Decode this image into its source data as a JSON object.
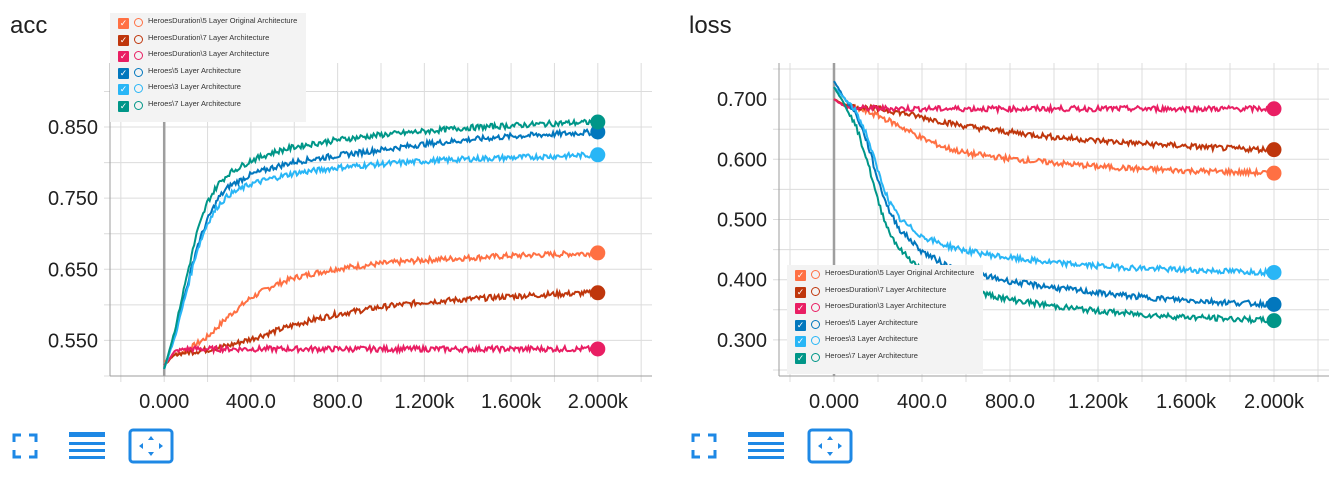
{
  "chart_data": [
    {
      "type": "line",
      "title": "acc",
      "xlabel": "",
      "ylabel": "",
      "xlim": [
        -250,
        2250
      ],
      "ylim": [
        0.5,
        0.94
      ],
      "x_ticks": [
        0,
        400,
        800,
        1200,
        1600,
        2000
      ],
      "x_tick_labels": [
        "0.000",
        "400.0",
        "800.0",
        "1.200k",
        "1.600k",
        "2.000k"
      ],
      "y_ticks": [
        0.55,
        0.65,
        0.75,
        0.85
      ],
      "y_tick_labels": [
        "0.550",
        "0.650",
        "0.750",
        "0.850"
      ],
      "legend_position": "top-left",
      "series": [
        {
          "name": "HeroesDuration\\5 Layer Original Architecture",
          "color": "#ff7043",
          "x": [
            0,
            50,
            100,
            200,
            300,
            400,
            500,
            600,
            700,
            800,
            1000,
            1200,
            1400,
            1600,
            1800,
            2000
          ],
          "y": [
            0.52,
            0.53,
            0.535,
            0.555,
            0.585,
            0.61,
            0.627,
            0.638,
            0.645,
            0.651,
            0.658,
            0.663,
            0.666,
            0.669,
            0.671,
            0.673
          ]
        },
        {
          "name": "HeroesDuration\\7 Layer Architecture",
          "color": "#bf360c",
          "x": [
            0,
            50,
            100,
            200,
            300,
            400,
            500,
            600,
            700,
            800,
            1000,
            1200,
            1400,
            1600,
            1800,
            2000
          ],
          "y": [
            0.515,
            0.53,
            0.533,
            0.537,
            0.543,
            0.552,
            0.562,
            0.572,
            0.58,
            0.587,
            0.597,
            0.604,
            0.608,
            0.612,
            0.615,
            0.617
          ]
        },
        {
          "name": "HeroesDuration\\3 Layer Architecture",
          "color": "#e91e63",
          "x": [
            0,
            50,
            100,
            400,
            800,
            1200,
            1600,
            2000
          ],
          "y": [
            0.515,
            0.535,
            0.538,
            0.538,
            0.538,
            0.538,
            0.538,
            0.538
          ]
        },
        {
          "name": "Heroes\\5 Layer Architecture",
          "color": "#0277bd",
          "x": [
            0,
            50,
            100,
            150,
            200,
            250,
            300,
            400,
            500,
            600,
            800,
            1000,
            1200,
            1400,
            1600,
            1800,
            2000
          ],
          "y": [
            0.51,
            0.56,
            0.62,
            0.68,
            0.72,
            0.75,
            0.767,
            0.783,
            0.793,
            0.801,
            0.81,
            0.818,
            0.826,
            0.832,
            0.837,
            0.84,
            0.843
          ]
        },
        {
          "name": "Heroes\\3 Layer Architecture",
          "color": "#29b6f6",
          "x": [
            0,
            50,
            100,
            150,
            200,
            250,
            300,
            400,
            500,
            600,
            800,
            1000,
            1200,
            1400,
            1600,
            1800,
            2000
          ],
          "y": [
            0.51,
            0.555,
            0.615,
            0.675,
            0.715,
            0.74,
            0.755,
            0.77,
            0.778,
            0.785,
            0.793,
            0.798,
            0.802,
            0.805,
            0.807,
            0.809,
            0.811
          ]
        },
        {
          "name": "Heroes\\7 Layer Architecture",
          "color": "#009688",
          "x": [
            0,
            50,
            100,
            150,
            200,
            250,
            300,
            400,
            500,
            600,
            800,
            1000,
            1200,
            1400,
            1600,
            1800,
            2000
          ],
          "y": [
            0.51,
            0.565,
            0.635,
            0.7,
            0.745,
            0.77,
            0.785,
            0.803,
            0.814,
            0.822,
            0.832,
            0.839,
            0.844,
            0.849,
            0.852,
            0.855,
            0.857
          ]
        }
      ]
    },
    {
      "type": "line",
      "title": "loss",
      "xlabel": "",
      "ylabel": "",
      "xlim": [
        -250,
        2250
      ],
      "ylim": [
        0.24,
        0.76
      ],
      "x_ticks": [
        0,
        400,
        800,
        1200,
        1600,
        2000
      ],
      "x_tick_labels": [
        "0.000",
        "400.0",
        "800.0",
        "1.200k",
        "1.600k",
        "2.000k"
      ],
      "y_ticks": [
        0.3,
        0.4,
        0.5,
        0.6,
        0.7
      ],
      "y_tick_labels": [
        "0.300",
        "0.400",
        "0.500",
        "0.600",
        "0.700"
      ],
      "legend_position": "bottom-left",
      "series": [
        {
          "name": "HeroesDuration\\5 Layer Original Architecture",
          "color": "#ff7043",
          "x": [
            0,
            50,
            100,
            200,
            300,
            400,
            500,
            600,
            800,
            1000,
            1200,
            1400,
            1600,
            1800,
            2000
          ],
          "y": [
            0.7,
            0.69,
            0.685,
            0.673,
            0.655,
            0.635,
            0.62,
            0.61,
            0.601,
            0.594,
            0.588,
            0.584,
            0.581,
            0.579,
            0.577
          ]
        },
        {
          "name": "HeroesDuration\\7 Layer Architecture",
          "color": "#bf360c",
          "x": [
            0,
            50,
            100,
            200,
            300,
            400,
            500,
            600,
            800,
            1000,
            1200,
            1400,
            1600,
            1800,
            2000
          ],
          "y": [
            0.7,
            0.69,
            0.687,
            0.684,
            0.678,
            0.67,
            0.662,
            0.655,
            0.645,
            0.637,
            0.631,
            0.626,
            0.622,
            0.618,
            0.616
          ]
        },
        {
          "name": "HeroesDuration\\3 Layer Architecture",
          "color": "#e91e63",
          "x": [
            0,
            50,
            100,
            400,
            800,
            1200,
            1600,
            2000
          ],
          "y": [
            0.7,
            0.687,
            0.685,
            0.684,
            0.684,
            0.684,
            0.684,
            0.684
          ]
        },
        {
          "name": "Heroes\\5 Layer Architecture",
          "color": "#0277bd",
          "x": [
            0,
            50,
            100,
            150,
            200,
            250,
            300,
            400,
            500,
            600,
            800,
            1000,
            1200,
            1400,
            1600,
            1800,
            2000
          ],
          "y": [
            0.73,
            0.7,
            0.675,
            0.63,
            0.565,
            0.515,
            0.483,
            0.447,
            0.426,
            0.413,
            0.397,
            0.387,
            0.378,
            0.371,
            0.366,
            0.362,
            0.359
          ]
        },
        {
          "name": "Heroes\\3 Layer Architecture",
          "color": "#29b6f6",
          "x": [
            0,
            50,
            100,
            150,
            200,
            250,
            300,
            400,
            500,
            600,
            800,
            1000,
            1200,
            1400,
            1600,
            1800,
            2000
          ],
          "y": [
            0.72,
            0.7,
            0.68,
            0.64,
            0.58,
            0.53,
            0.5,
            0.472,
            0.458,
            0.448,
            0.436,
            0.428,
            0.423,
            0.419,
            0.416,
            0.414,
            0.412
          ]
        },
        {
          "name": "Heroes\\7 Layer Architecture",
          "color": "#009688",
          "x": [
            0,
            50,
            100,
            150,
            200,
            250,
            300,
            400,
            500,
            600,
            800,
            1000,
            1200,
            1400,
            1600,
            1800,
            2000
          ],
          "y": [
            0.72,
            0.69,
            0.655,
            0.6,
            0.53,
            0.48,
            0.45,
            0.415,
            0.395,
            0.383,
            0.367,
            0.356,
            0.348,
            0.342,
            0.338,
            0.335,
            0.332
          ]
        }
      ]
    }
  ],
  "panels": {
    "acc": {
      "title": "acc"
    },
    "loss": {
      "title": "loss"
    }
  },
  "legend": {
    "items": [
      {
        "label": "HeroesDuration\\5 Layer Original Architecture",
        "color": "#ff7043"
      },
      {
        "label": "HeroesDuration\\7 Layer Architecture",
        "color": "#bf360c"
      },
      {
        "label": "HeroesDuration\\3 Layer Architecture",
        "color": "#e91e63"
      },
      {
        "label": "Heroes\\5 Layer Architecture",
        "color": "#0277bd"
      },
      {
        "label": "Heroes\\3 Layer Architecture",
        "color": "#29b6f6"
      },
      {
        "label": "Heroes\\7 Layer Architecture",
        "color": "#009688"
      }
    ]
  },
  "toolbar": {
    "icons": [
      "fullscreen-icon",
      "data-table-icon",
      "fit-domain-icon"
    ],
    "accent": "#1e88e5"
  }
}
